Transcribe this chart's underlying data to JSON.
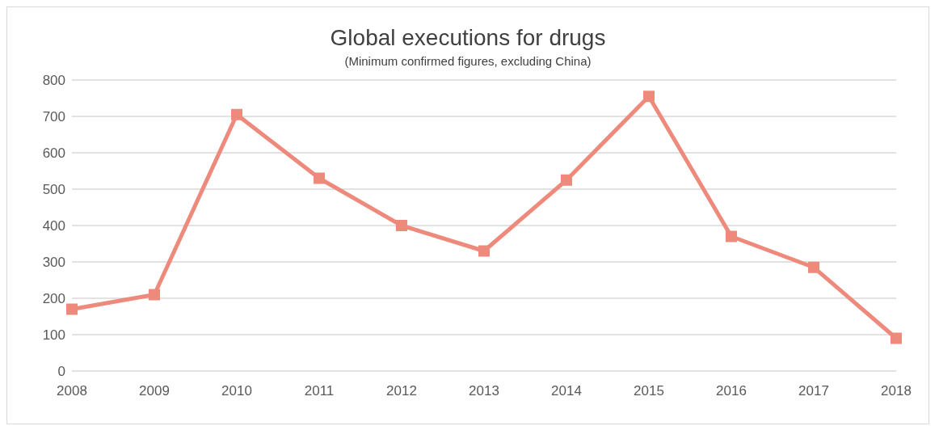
{
  "chart_data": {
    "type": "line",
    "title": "Global executions for drugs",
    "subtitle": "(Minimum confirmed figures, excluding China)",
    "categories": [
      "2008",
      "2009",
      "2010",
      "2011",
      "2012",
      "2013",
      "2014",
      "2015",
      "2016",
      "2017",
      "2018"
    ],
    "series": [
      {
        "color": "#ee8a7c",
        "values": [
          170,
          210,
          705,
          530,
          400,
          330,
          525,
          755,
          370,
          285,
          90
        ]
      }
    ],
    "ylim": [
      0,
      800
    ],
    "yticks": [
      0,
      100,
      200,
      300,
      400,
      500,
      600,
      700,
      800
    ],
    "grid": "y",
    "legend": false,
    "marker": "square",
    "line_style": "solid"
  }
}
